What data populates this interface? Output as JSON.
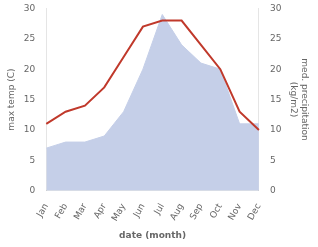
{
  "chart_data": {
    "type": "line",
    "categories": [
      "Jan",
      "Feb",
      "Mar",
      "Apr",
      "May",
      "Jun",
      "Jul",
      "Aug",
      "Sep",
      "Oct",
      "Nov",
      "Dec"
    ],
    "xlabel": "date (month)",
    "ylabel": "max temp (C)",
    "y2label": "med. precipitation\n(kg/m2)",
    "series": [
      {
        "type": "area",
        "color": "#c5cfe8",
        "axis": "y2",
        "values": [
          7,
          8,
          8,
          9,
          13,
          20,
          29,
          24,
          21,
          20,
          11,
          11
        ]
      },
      {
        "type": "line",
        "color": "#c0392b",
        "values": [
          11,
          13,
          14,
          17,
          22,
          27,
          28,
          28,
          24,
          20,
          13,
          10
        ]
      }
    ],
    "ylim": [
      0,
      30
    ],
    "yticks": [
      0,
      5,
      10,
      15,
      20,
      25,
      30
    ],
    "y2lim": [
      0,
      30
    ],
    "y2ticks": [
      0,
      5,
      10,
      15,
      20,
      25,
      30
    ],
    "grid": false
  }
}
